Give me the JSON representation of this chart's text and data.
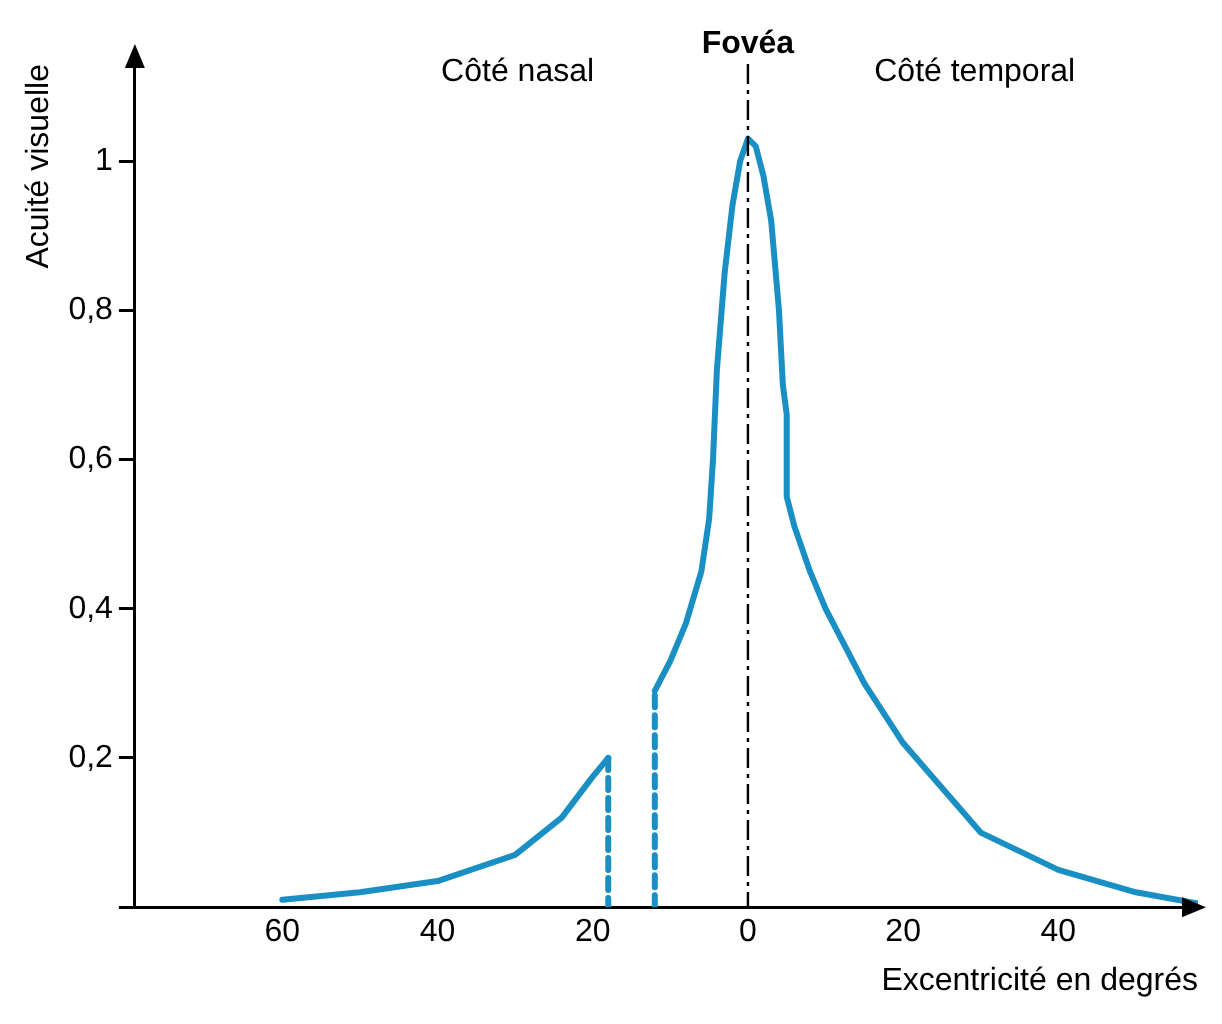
{
  "chart_data": {
    "type": "line",
    "xlabel": "Excentricité en degrés",
    "ylabel": "Acuité visuelle",
    "xlim": [
      -79,
      58
    ],
    "ylim": [
      0,
      1.13
    ],
    "xticks": [
      {
        "value": -60,
        "label": "60"
      },
      {
        "value": -40,
        "label": "40"
      },
      {
        "value": -20,
        "label": "20"
      },
      0,
      20,
      40
    ],
    "yticks": [
      {
        "value": 0,
        "label": null
      },
      {
        "value": 0.2,
        "label": "0,2"
      },
      {
        "value": 0.4,
        "label": "0,4"
      },
      {
        "value": 0.6,
        "label": "0,6"
      },
      {
        "value": 0.8,
        "label": "0,8"
      },
      {
        "value": 1,
        "label": "1"
      }
    ],
    "grid": false,
    "legend": false,
    "marker": "none",
    "series": [
      {
        "color": "#1a8fc4",
        "line_style": "solid",
        "x": [
          -60,
          -50,
          -40,
          -30,
          -24,
          -20,
          -18
        ],
        "values": [
          0.01,
          0.02,
          0.035,
          0.07,
          0.12,
          0.175,
          0.2
        ]
      },
      {
        "color": "#1a8fc4",
        "line_style": "dashed",
        "x": [
          -18,
          -18,
          null,
          -12,
          -12
        ],
        "values": [
          0.2,
          0,
          null,
          0,
          0.29
        ]
      },
      {
        "color": "#1a8fc4",
        "line_style": "solid",
        "x": [
          -12,
          -10,
          -8,
          -6,
          -5,
          -4.5,
          -4,
          -3,
          -2,
          -1,
          0,
          1,
          2,
          3,
          4,
          4.5,
          5,
          5,
          6,
          8,
          10,
          15,
          20,
          30,
          40,
          50,
          58
        ],
        "values": [
          0.29,
          0.33,
          0.38,
          0.45,
          0.52,
          0.6,
          0.72,
          0.85,
          0.94,
          1.0,
          1.03,
          1.02,
          0.98,
          0.92,
          0.8,
          0.7,
          0.66,
          0.55,
          0.51,
          0.45,
          0.4,
          0.3,
          0.22,
          0.1,
          0.05,
          0.02,
          0.005
        ]
      }
    ],
    "ref_lines": [
      {
        "axis": "x",
        "value": 0,
        "label": "Fovéa",
        "color": "#000000",
        "line_style": "dashed"
      }
    ],
    "annotations": [
      "Côté nasal",
      "Côté temporal"
    ]
  }
}
